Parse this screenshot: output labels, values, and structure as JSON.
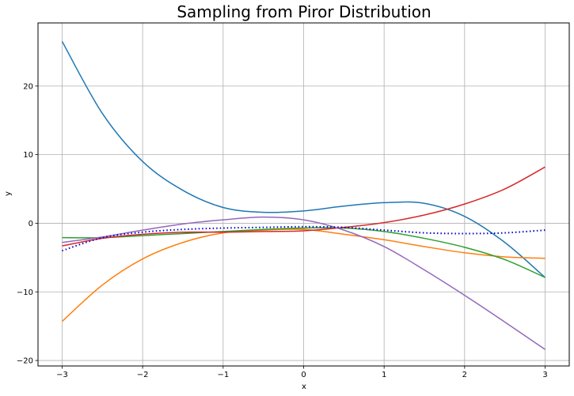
{
  "chart_data": {
    "type": "line",
    "title": "Sampling from Piror Distribution",
    "xlabel": "x",
    "ylabel": "y",
    "xlim": [
      -3.3,
      3.3
    ],
    "ylim": [
      -20.8,
      29.2
    ],
    "xticks": [
      -3,
      -2,
      -1,
      0,
      1,
      2,
      3
    ],
    "xtick_labels": [
      "−3",
      "−2",
      "−1",
      "0",
      "1",
      "2",
      "3"
    ],
    "yticks": [
      -20,
      -10,
      0,
      10,
      20
    ],
    "ytick_labels": [
      "−20",
      "−10",
      "0",
      "10",
      "20"
    ],
    "grid": true,
    "legend": false,
    "x": [
      -3,
      -2.5,
      -2,
      -1.5,
      -1,
      -0.5,
      0,
      0.5,
      1,
      1.5,
      2,
      2.5,
      3
    ],
    "series": [
      {
        "color": "#1f77b4",
        "style": "solid",
        "values": [
          26.5,
          16.0,
          9.0,
          4.8,
          2.3,
          1.6,
          1.8,
          2.5,
          3.0,
          2.9,
          1.0,
          -2.8,
          -7.9
        ]
      },
      {
        "color": "#ff7f0e",
        "style": "solid",
        "values": [
          -14.3,
          -9.0,
          -5.2,
          -2.8,
          -1.4,
          -1.0,
          -0.9,
          -1.6,
          -2.4,
          -3.4,
          -4.3,
          -4.9,
          -5.1
        ]
      },
      {
        "color": "#2ca02c",
        "style": "solid",
        "values": [
          -2.1,
          -2.1,
          -1.8,
          -1.5,
          -1.2,
          -0.9,
          -0.7,
          -0.7,
          -1.2,
          -2.2,
          -3.5,
          -5.3,
          -7.9
        ]
      },
      {
        "color": "#d62728",
        "style": "solid",
        "values": [
          -3.3,
          -2.2,
          -1.6,
          -1.3,
          -1.3,
          -1.2,
          -1.1,
          -0.6,
          0.1,
          1.2,
          2.8,
          5.0,
          8.2
        ]
      },
      {
        "color": "#9467bd",
        "style": "solid",
        "values": [
          -2.8,
          -2.0,
          -1.0,
          -0.1,
          0.5,
          0.9,
          0.5,
          -1.0,
          -3.4,
          -6.8,
          -10.5,
          -14.4,
          -18.4
        ]
      },
      {
        "color": "#0000cc",
        "style": "dotted",
        "values": [
          -4.0,
          -2.1,
          -1.3,
          -0.9,
          -0.7,
          -0.6,
          -0.5,
          -0.6,
          -1.0,
          -1.4,
          -1.5,
          -1.4,
          -1.0
        ]
      }
    ]
  }
}
